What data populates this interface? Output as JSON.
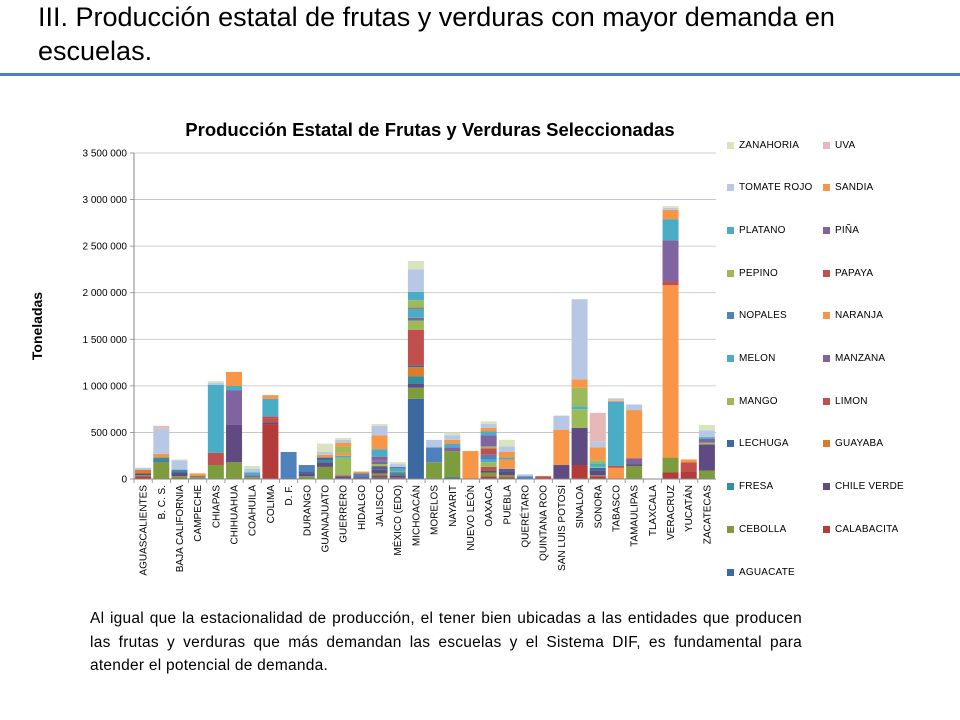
{
  "slide": {
    "title": "III. Producción estatal de frutas y verduras con mayor demanda en escuelas.",
    "body_text": "Al igual que la estacionalidad de producción, el tener bien ubicadas a las entidades que producen las frutas y verduras que más demandan las escuelas y el Sistema DIF, es fundamental para atender el potencial de demanda."
  },
  "chart_data": {
    "type": "bar",
    "stacked": true,
    "title": "Producción Estatal de Frutas y Verduras Seleccionadas",
    "xlabel": "",
    "ylabel": "Toneladas",
    "ylim": [
      0,
      3500000
    ],
    "yticks": [
      0,
      500000,
      1000000,
      1500000,
      2000000,
      2500000,
      3000000,
      3500000
    ],
    "ytick_labels": [
      "0",
      "500 000",
      "1 000 000",
      "1 500 000",
      "2 000 000",
      "2 500 000",
      "3 000 000",
      "3 500 000"
    ],
    "grid": "horizontal",
    "legend_position": "right",
    "categories": [
      "AGUASCALIENTES",
      "B. C. S.",
      "BAJA CALIFORNIA",
      "CAMPECHE",
      "CHIAPAS",
      "CHIHUAHUA",
      "COAHUILA",
      "COLIMA",
      "D. F.",
      "DURANGO",
      "GUANAJUATO",
      "GUERRERO",
      "HIDALGO",
      "JALISCO",
      "MÉXICO (EDO)",
      "MICHOACÁN",
      "MORELOS",
      "NAYARIT",
      "NUEVO LEÓN",
      "OAXACA",
      "PUEBLA",
      "QUERÉTARO",
      "QUINTANA ROO",
      "SAN LUIS POTOSÍ",
      "SINALOA",
      "SONORA",
      "TABASCO",
      "TAMAULIPAS",
      "TLAXCALA",
      "VERACRUZ",
      "YUCATÁN",
      "ZACATECAS"
    ],
    "series": [
      {
        "name": "AGUACATE",
        "color": "#3c6aa0",
        "values": [
          0,
          0,
          0,
          0,
          0,
          0,
          0,
          0,
          0,
          0,
          0,
          10000,
          0,
          20000,
          10000,
          860000,
          0,
          20000,
          0,
          10000,
          0,
          0,
          0,
          0,
          0,
          0,
          0,
          0,
          0,
          0,
          0,
          0
        ]
      },
      {
        "name": "CALABACITA",
        "color": "#b33c3a",
        "values": [
          30000,
          0,
          10000,
          0,
          0,
          0,
          0,
          590000,
          0,
          0,
          0,
          0,
          10000,
          20000,
          10000,
          0,
          0,
          0,
          0,
          20000,
          20000,
          0,
          0,
          0,
          150000,
          30000,
          0,
          0,
          0,
          70000,
          80000,
          0
        ]
      },
      {
        "name": "CEBOLLA",
        "color": "#7d9c3e",
        "values": [
          10000,
          180000,
          20000,
          20000,
          150000,
          180000,
          20000,
          0,
          0,
          30000,
          130000,
          0,
          0,
          20000,
          0,
          120000,
          180000,
          280000,
          0,
          40000,
          20000,
          0,
          0,
          0,
          0,
          10000,
          0,
          140000,
          0,
          160000,
          0,
          90000
        ]
      },
      {
        "name": "CHILE VERDE",
        "color": "#5f4a82",
        "values": [
          20000,
          10000,
          40000,
          10000,
          0,
          400000,
          0,
          20000,
          0,
          30000,
          50000,
          20000,
          10000,
          40000,
          20000,
          40000,
          0,
          0,
          0,
          20000,
          40000,
          0,
          0,
          150000,
          400000,
          50000,
          0,
          20000,
          0,
          0,
          0,
          280000
        ]
      },
      {
        "name": "FRESA",
        "color": "#2f8fa5",
        "values": [
          0,
          40000,
          20000,
          0,
          0,
          0,
          0,
          0,
          0,
          0,
          20000,
          0,
          0,
          0,
          20000,
          80000,
          0,
          0,
          0,
          0,
          0,
          0,
          0,
          0,
          0,
          0,
          0,
          0,
          0,
          0,
          0,
          0
        ]
      },
      {
        "name": "GUAYABA",
        "color": "#d97c2d",
        "values": [
          40000,
          0,
          0,
          0,
          0,
          0,
          0,
          0,
          0,
          0,
          0,
          0,
          0,
          0,
          0,
          100000,
          0,
          0,
          0,
          0,
          0,
          0,
          0,
          0,
          0,
          0,
          0,
          0,
          0,
          0,
          0,
          0
        ]
      },
      {
        "name": "LECHUGA",
        "color": "#3c6aa0",
        "values": [
          0,
          0,
          10000,
          0,
          0,
          0,
          0,
          0,
          0,
          20000,
          30000,
          0,
          0,
          30000,
          10000,
          20000,
          0,
          0,
          0,
          0,
          30000,
          0,
          0,
          0,
          0,
          30000,
          0,
          0,
          0,
          0,
          0,
          0
        ]
      },
      {
        "name": "LIMON",
        "color": "#c0504d",
        "values": [
          0,
          0,
          0,
          0,
          0,
          0,
          0,
          40000,
          0,
          0,
          0,
          10000,
          0,
          10000,
          0,
          380000,
          0,
          0,
          0,
          40000,
          0,
          0,
          0,
          0,
          0,
          0,
          0,
          0,
          0,
          0,
          0,
          0
        ]
      },
      {
        "name": "MANGO",
        "color": "#9bbb59",
        "values": [
          0,
          0,
          0,
          0,
          0,
          0,
          0,
          0,
          0,
          0,
          0,
          190000,
          0,
          20000,
          10000,
          100000,
          0,
          0,
          0,
          50000,
          0,
          0,
          0,
          0,
          200000,
          10000,
          0,
          0,
          0,
          0,
          0,
          20000
        ]
      },
      {
        "name": "MANZANA",
        "color": "#8064a2",
        "values": [
          0,
          0,
          0,
          0,
          0,
          370000,
          20000,
          0,
          0,
          0,
          0,
          0,
          0,
          30000,
          0,
          30000,
          0,
          0,
          0,
          0,
          0,
          0,
          0,
          0,
          0,
          0,
          0,
          60000,
          0,
          0,
          0,
          40000
        ]
      },
      {
        "name": "MELON",
        "color": "#4bacc6",
        "values": [
          0,
          0,
          0,
          0,
          0,
          0,
          30000,
          0,
          0,
          0,
          0,
          20000,
          0,
          0,
          30000,
          100000,
          0,
          0,
          0,
          30000,
          0,
          0,
          0,
          0,
          30000,
          40000,
          0,
          0,
          0,
          0,
          0,
          20000
        ]
      },
      {
        "name": "NARANJA",
        "color": "#f79646",
        "values": [
          0,
          0,
          0,
          0,
          0,
          0,
          0,
          0,
          0,
          0,
          0,
          30000,
          0,
          0,
          0,
          0,
          0,
          0,
          300000,
          0,
          100000,
          0,
          0,
          380000,
          0,
          0,
          120000,
          520000,
          0,
          1850000,
          0,
          0
        ]
      },
      {
        "name": "NOPALES",
        "color": "#4f81bd",
        "values": [
          0,
          0,
          0,
          0,
          0,
          0,
          0,
          0,
          290000,
          70000,
          0,
          0,
          40000,
          10000,
          20000,
          0,
          160000,
          0,
          0,
          50000,
          0,
          30000,
          0,
          0,
          0,
          0,
          0,
          0,
          0,
          0,
          0,
          0
        ]
      },
      {
        "name": "PAPAYA",
        "color": "#c0504d",
        "values": [
          0,
          0,
          0,
          0,
          130000,
          0,
          0,
          20000,
          0,
          0,
          0,
          0,
          0,
          10000,
          0,
          10000,
          0,
          0,
          0,
          70000,
          0,
          0,
          30000,
          0,
          0,
          0,
          20000,
          0,
          0,
          40000,
          100000,
          0
        ]
      },
      {
        "name": "PEPINO",
        "color": "#9bbb59",
        "values": [
          0,
          0,
          0,
          0,
          0,
          0,
          0,
          0,
          0,
          0,
          0,
          70000,
          0,
          0,
          0,
          80000,
          0,
          0,
          0,
          20000,
          0,
          0,
          0,
          0,
          200000,
          30000,
          0,
          0,
          0,
          0,
          0,
          0
        ]
      },
      {
        "name": "PIÑA",
        "color": "#8064a2",
        "values": [
          0,
          0,
          0,
          0,
          0,
          0,
          0,
          0,
          0,
          0,
          0,
          0,
          0,
          30000,
          0,
          0,
          0,
          40000,
          0,
          120000,
          0,
          0,
          0,
          0,
          0,
          0,
          0,
          0,
          0,
          440000,
          0,
          0
        ]
      },
      {
        "name": "PLATANO",
        "color": "#4bacc6",
        "values": [
          0,
          0,
          0,
          0,
          730000,
          50000,
          0,
          190000,
          0,
          0,
          0,
          0,
          0,
          80000,
          0,
          90000,
          0,
          40000,
          0,
          40000,
          20000,
          0,
          0,
          0,
          0,
          0,
          690000,
          0,
          0,
          230000,
          0,
          0
        ]
      },
      {
        "name": "SANDIA",
        "color": "#f79646",
        "values": [
          0,
          40000,
          0,
          30000,
          0,
          150000,
          0,
          40000,
          0,
          0,
          30000,
          40000,
          20000,
          150000,
          0,
          0,
          0,
          40000,
          0,
          40000,
          60000,
          0,
          0,
          0,
          90000,
          140000,
          10000,
          0,
          0,
          100000,
          30000,
          0
        ]
      },
      {
        "name": "TOMATE ROJO",
        "color": "#b7c8e6",
        "values": [
          20000,
          270000,
          100000,
          0,
          20000,
          0,
          40000,
          0,
          0,
          0,
          30000,
          30000,
          0,
          100000,
          30000,
          240000,
          80000,
          50000,
          0,
          40000,
          60000,
          20000,
          0,
          150000,
          860000,
          60000,
          20000,
          60000,
          0,
          20000,
          0,
          70000
        ]
      },
      {
        "name": "UVA",
        "color": "#e6b8b7",
        "values": [
          0,
          30000,
          0,
          0,
          0,
          0,
          0,
          0,
          0,
          0,
          0,
          0,
          0,
          0,
          0,
          0,
          0,
          0,
          0,
          0,
          0,
          0,
          0,
          0,
          0,
          310000,
          0,
          0,
          0,
          0,
          0,
          0
        ]
      },
      {
        "name": "ZANAHORIA",
        "color": "#d7e4bd",
        "values": [
          0,
          0,
          10000,
          0,
          20000,
          0,
          30000,
          0,
          0,
          0,
          90000,
          20000,
          0,
          20000,
          20000,
          90000,
          0,
          30000,
          0,
          30000,
          70000,
          0,
          0,
          0,
          0,
          0,
          10000,
          0,
          0,
          20000,
          0,
          60000
        ]
      }
    ]
  }
}
